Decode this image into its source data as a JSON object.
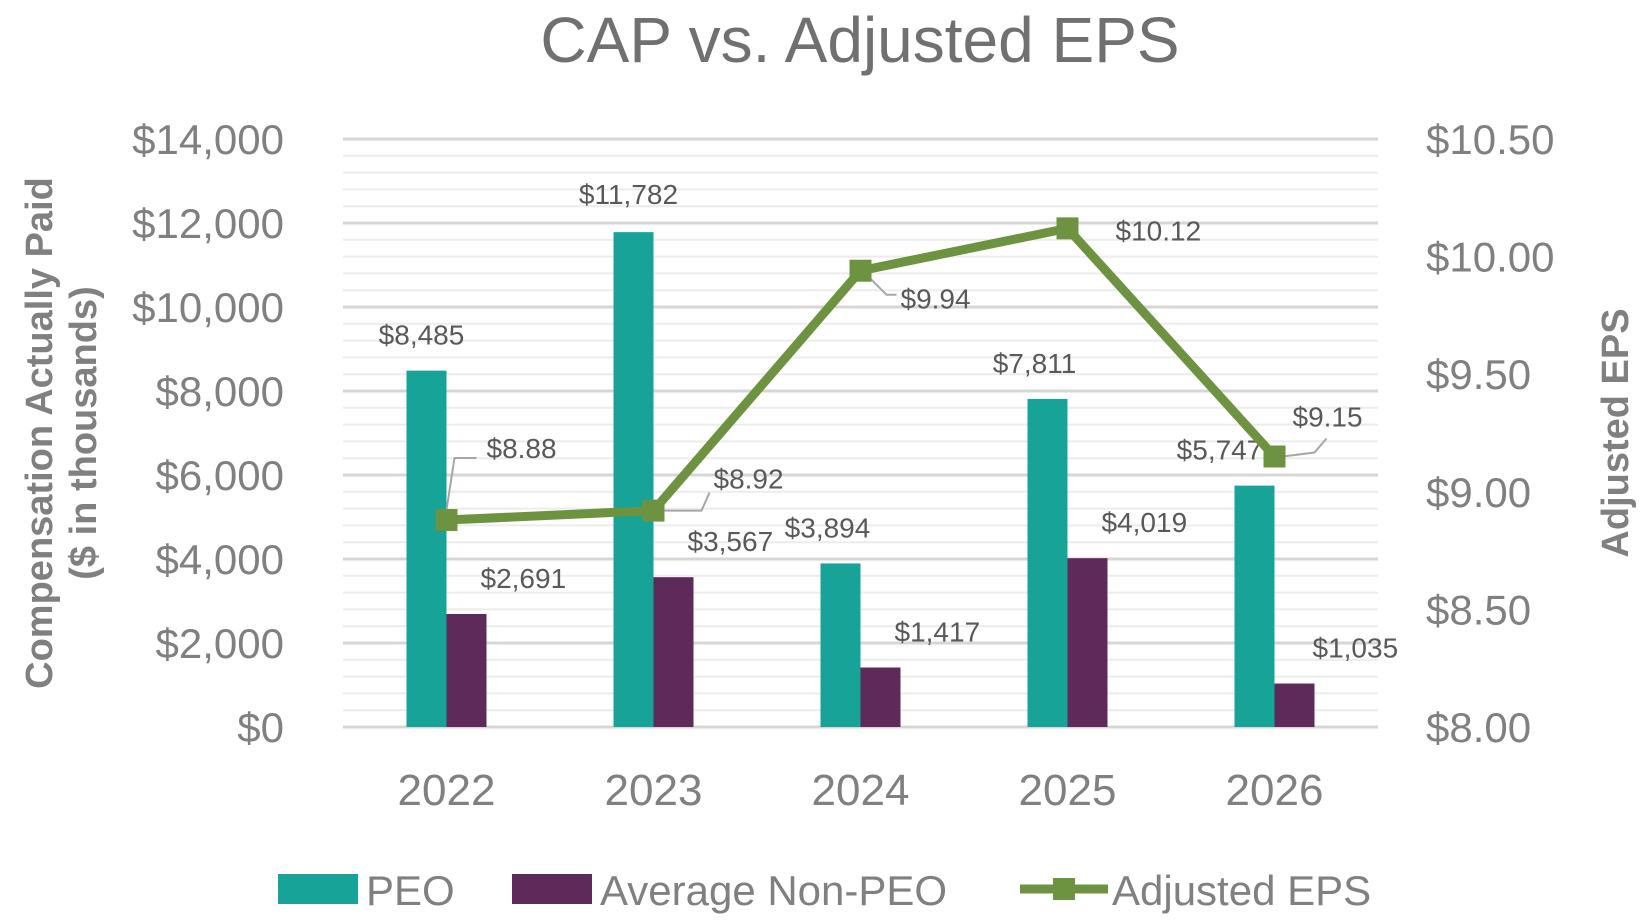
{
  "chart_data": {
    "type": "bar",
    "title": "CAP vs. Adjusted EPS",
    "categories": [
      "2022",
      "2023",
      "2024",
      "2025",
      "2026"
    ],
    "ylabel_line1": "Compensation Actually Paid",
    "ylabel_line2": "($ in thousands)",
    "y2label": "Adjusted EPS",
    "ylim": [
      0,
      14000
    ],
    "y2lim": [
      8.0,
      10.5
    ],
    "yticks": [
      "$0",
      "$2,000",
      "$4,000",
      "$6,000",
      "$8,000",
      "$10,000",
      "$12,000",
      "$14,000"
    ],
    "y2ticks": [
      "$8.00",
      "$8.50",
      "$9.00",
      "$9.50",
      "$10.00",
      "$10.50"
    ],
    "series": [
      {
        "name": "PEO",
        "kind": "bar",
        "color": "#17a398",
        "values": [
          8485,
          11782,
          3894,
          7811,
          5747
        ],
        "labels": [
          "$8,485",
          "$11,782",
          "$3,894",
          "$7,811",
          "$5,747"
        ]
      },
      {
        "name": "Average Non-PEO",
        "kind": "bar",
        "color": "#5e2a5a",
        "values": [
          2691,
          3567,
          1417,
          4019,
          1035
        ],
        "labels": [
          "$2,691",
          "$3,567",
          "$1,417",
          "$4,019",
          "$1,035"
        ]
      },
      {
        "name": "Adjusted EPS",
        "kind": "line",
        "axis": "right",
        "color": "#6e9340",
        "values": [
          8.88,
          8.92,
          9.94,
          10.12,
          9.15
        ],
        "labels": [
          "$8.88",
          "$8.92",
          "$9.94",
          "$10.12",
          "$9.15"
        ]
      }
    ],
    "grid": true,
    "legend": "bottom"
  }
}
